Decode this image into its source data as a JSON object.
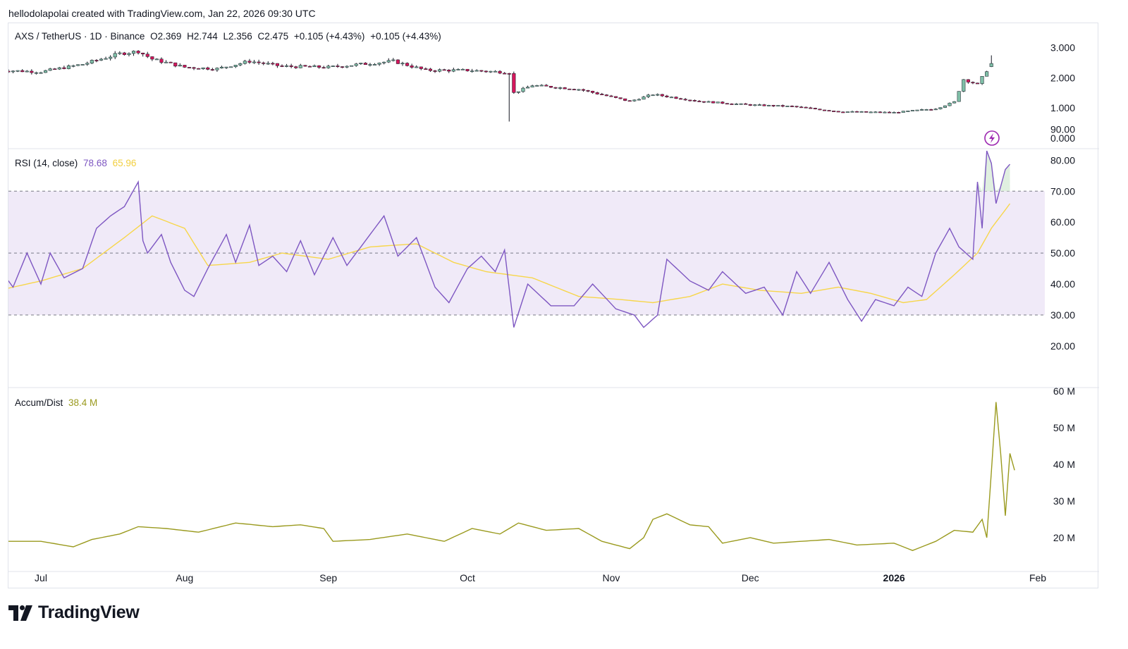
{
  "header": {
    "text": "hellodolapolai created with TradingView.com, Jan 22, 2026 09:30 UTC"
  },
  "logo": {
    "text": "TradingView",
    "icon": "tradingview-logo-icon"
  },
  "legend_price": {
    "symbol": "AXS / TetherUS · 1D · Binance",
    "open": "O2.369",
    "high": "H2.744",
    "low": "L2.356",
    "close": "C2.475",
    "change1": "+0.105 (+4.43%)",
    "change2": "+0.105 (+4.43%)"
  },
  "legend_rsi": {
    "name": "RSI (14, close)",
    "value": "78.68",
    "ma_value": "65.96"
  },
  "legend_ad": {
    "name": "Accum/Dist",
    "value": "38.4 M"
  },
  "colors": {
    "up": "#7fbfa7",
    "down": "#d6175d",
    "rsi": "#7e57c2",
    "rsi_ma": "#f7d64a",
    "band": "#f0eaf8",
    "ad": "#9a9a1e"
  },
  "chart_data": [
    {
      "type": "candlestick",
      "title": "AXS / TetherUS · 1D · Binance",
      "x_ticks": [
        "Jul",
        "Aug",
        "Sep",
        "Oct",
        "Nov",
        "Dec",
        "2026",
        "Feb"
      ],
      "y_ticks": [
        "3.000",
        "2.000",
        "1.000",
        "0.000"
      ],
      "ylim": [
        0,
        3.3
      ],
      "notable": {
        "oct_crash_low": 0.55,
        "last": {
          "open": 2.369,
          "high": 2.744,
          "low": 2.356,
          "close": 2.475
        }
      },
      "close_path": [
        [
          "2025-06-22",
          2.25
        ],
        [
          "2025-07-01",
          2.2
        ],
        [
          "2025-07-10",
          2.45
        ],
        [
          "2025-07-18",
          2.8
        ],
        [
          "2025-07-22",
          2.88
        ],
        [
          "2025-07-25",
          2.62
        ],
        [
          "2025-08-01",
          2.35
        ],
        [
          "2025-08-08",
          2.3
        ],
        [
          "2025-08-15",
          2.55
        ],
        [
          "2025-08-22",
          2.38
        ],
        [
          "2025-09-01",
          2.35
        ],
        [
          "2025-09-08",
          2.45
        ],
        [
          "2025-09-15",
          2.55
        ],
        [
          "2025-09-22",
          2.25
        ],
        [
          "2025-10-01",
          2.25
        ],
        [
          "2025-10-10",
          2.18
        ],
        [
          "2025-10-11",
          1.5
        ],
        [
          "2025-10-15",
          1.75
        ],
        [
          "2025-10-25",
          1.62
        ],
        [
          "2025-11-05",
          1.22
        ],
        [
          "2025-11-10",
          1.45
        ],
        [
          "2025-11-20",
          1.22
        ],
        [
          "2025-12-01",
          1.1
        ],
        [
          "2025-12-10",
          1.05
        ],
        [
          "2025-12-20",
          0.88
        ],
        [
          "2026-01-01",
          0.85
        ],
        [
          "2026-01-10",
          0.98
        ],
        [
          "2026-01-14",
          1.2
        ],
        [
          "2026-01-16",
          1.95
        ],
        [
          "2026-01-19",
          1.78
        ],
        [
          "2026-01-22",
          2.475
        ]
      ]
    },
    {
      "type": "line",
      "title": "RSI (14, close)",
      "y_ticks": [
        "90.00",
        "80.00",
        "70.00",
        "60.00",
        "50.00",
        "40.00",
        "30.00",
        "20.00"
      ],
      "ylim": [
        18,
        92
      ],
      "bands": {
        "upper": 70,
        "middle": 50,
        "lower": 30
      },
      "series": [
        {
          "name": "RSI",
          "points": [
            [
              "2025-06-22",
              45
            ],
            [
              "2025-06-25",
              39
            ],
            [
              "2025-06-28",
              50
            ],
            [
              "2025-07-01",
              40
            ],
            [
              "2025-07-03",
              50
            ],
            [
              "2025-07-06",
              42
            ],
            [
              "2025-07-10",
              45
            ],
            [
              "2025-07-13",
              58
            ],
            [
              "2025-07-16",
              62
            ],
            [
              "2025-07-19",
              65
            ],
            [
              "2025-07-22",
              73
            ],
            [
              "2025-07-23",
              54
            ],
            [
              "2025-07-24",
              50
            ],
            [
              "2025-07-27",
              56
            ],
            [
              "2025-07-29",
              47
            ],
            [
              "2025-08-01",
              38
            ],
            [
              "2025-08-03",
              36
            ],
            [
              "2025-08-06",
              45
            ],
            [
              "2025-08-10",
              56
            ],
            [
              "2025-08-12",
              47
            ],
            [
              "2025-08-15",
              59
            ],
            [
              "2025-08-17",
              46
            ],
            [
              "2025-08-20",
              49
            ],
            [
              "2025-08-23",
              44
            ],
            [
              "2025-08-26",
              54
            ],
            [
              "2025-08-29",
              43
            ],
            [
              "2025-09-02",
              55
            ],
            [
              "2025-09-05",
              46
            ],
            [
              "2025-09-09",
              54
            ],
            [
              "2025-09-13",
              62
            ],
            [
              "2025-09-16",
              49
            ],
            [
              "2025-09-20",
              55
            ],
            [
              "2025-09-24",
              39
            ],
            [
              "2025-09-27",
              34
            ],
            [
              "2025-10-01",
              45
            ],
            [
              "2025-10-04",
              49
            ],
            [
              "2025-10-07",
              44
            ],
            [
              "2025-10-09",
              51
            ],
            [
              "2025-10-11",
              26
            ],
            [
              "2025-10-14",
              40
            ],
            [
              "2025-10-19",
              33
            ],
            [
              "2025-10-24",
              33
            ],
            [
              "2025-10-28",
              40
            ],
            [
              "2025-11-02",
              32
            ],
            [
              "2025-11-06",
              30
            ],
            [
              "2025-11-08",
              26
            ],
            [
              "2025-11-11",
              30
            ],
            [
              "2025-11-13",
              48
            ],
            [
              "2025-11-18",
              41
            ],
            [
              "2025-11-22",
              38
            ],
            [
              "2025-11-25",
              44
            ],
            [
              "2025-11-30",
              37
            ],
            [
              "2025-12-04",
              39
            ],
            [
              "2025-12-08",
              30
            ],
            [
              "2025-12-11",
              44
            ],
            [
              "2025-12-14",
              37
            ],
            [
              "2025-12-18",
              47
            ],
            [
              "2025-12-22",
              35
            ],
            [
              "2025-12-25",
              28
            ],
            [
              "2025-12-28",
              35
            ],
            [
              "2026-01-01",
              33
            ],
            [
              "2026-01-04",
              39
            ],
            [
              "2026-01-07",
              36
            ],
            [
              "2026-01-10",
              50
            ],
            [
              "2026-01-13",
              58
            ],
            [
              "2026-01-15",
              52
            ],
            [
              "2026-01-18",
              48
            ],
            [
              "2026-01-19",
              73
            ],
            [
              "2026-01-20",
              58
            ],
            [
              "2026-01-21",
              83
            ],
            [
              "2026-01-22",
              79
            ],
            [
              "2026-01-23",
              66
            ],
            [
              "2026-01-25",
              77
            ],
            [
              "2026-01-26",
              78.68
            ]
          ]
        },
        {
          "name": "RSI-based MA",
          "points": [
            [
              "2025-06-22",
              38
            ],
            [
              "2025-07-01",
              41
            ],
            [
              "2025-07-10",
              45
            ],
            [
              "2025-07-19",
              55
            ],
            [
              "2025-07-25",
              62
            ],
            [
              "2025-08-01",
              58
            ],
            [
              "2025-08-06",
              46
            ],
            [
              "2025-08-15",
              47
            ],
            [
              "2025-08-22",
              50
            ],
            [
              "2025-09-01",
              48
            ],
            [
              "2025-09-10",
              52
            ],
            [
              "2025-09-20",
              53
            ],
            [
              "2025-09-28",
              47
            ],
            [
              "2025-10-05",
              44
            ],
            [
              "2025-10-15",
              42
            ],
            [
              "2025-10-25",
              36
            ],
            [
              "2025-11-03",
              35
            ],
            [
              "2025-11-10",
              34
            ],
            [
              "2025-11-18",
              36
            ],
            [
              "2025-11-25",
              40
            ],
            [
              "2025-12-03",
              38
            ],
            [
              "2025-12-12",
              37
            ],
            [
              "2025-12-20",
              39
            ],
            [
              "2025-12-27",
              37
            ],
            [
              "2026-01-03",
              34
            ],
            [
              "2026-01-08",
              35
            ],
            [
              "2026-01-14",
              43
            ],
            [
              "2026-01-19",
              50
            ],
            [
              "2026-01-22",
              58
            ],
            [
              "2026-01-26",
              65.96
            ]
          ]
        }
      ]
    },
    {
      "type": "line",
      "title": "Accum/Dist",
      "y_ticks": [
        "60 M",
        "50 M",
        "40 M",
        "30 M",
        "20 M"
      ],
      "ylim": [
        13,
        60
      ],
      "series": [
        {
          "name": "Accum/Dist",
          "points": [
            [
              "2025-06-22",
              19
            ],
            [
              "2025-07-01",
              19
            ],
            [
              "2025-07-08",
              17.5
            ],
            [
              "2025-07-12",
              19.5
            ],
            [
              "2025-07-18",
              21
            ],
            [
              "2025-07-22",
              23
            ],
            [
              "2025-07-28",
              22.5
            ],
            [
              "2025-08-04",
              21.5
            ],
            [
              "2025-08-12",
              24
            ],
            [
              "2025-08-20",
              23
            ],
            [
              "2025-08-26",
              23.5
            ],
            [
              "2025-08-31",
              22.5
            ],
            [
              "2025-09-02",
              19
            ],
            [
              "2025-09-10",
              19.5
            ],
            [
              "2025-09-18",
              21
            ],
            [
              "2025-09-26",
              19
            ],
            [
              "2025-10-02",
              22.5
            ],
            [
              "2025-10-08",
              21
            ],
            [
              "2025-10-12",
              24
            ],
            [
              "2025-10-18",
              22
            ],
            [
              "2025-10-25",
              22.5
            ],
            [
              "2025-10-30",
              19
            ],
            [
              "2025-11-05",
              17
            ],
            [
              "2025-11-08",
              20
            ],
            [
              "2025-11-10",
              25
            ],
            [
              "2025-11-13",
              26.5
            ],
            [
              "2025-11-18",
              23.5
            ],
            [
              "2025-11-22",
              23
            ],
            [
              "2025-11-25",
              18.5
            ],
            [
              "2025-12-01",
              20
            ],
            [
              "2025-12-06",
              18.5
            ],
            [
              "2025-12-12",
              19
            ],
            [
              "2025-12-18",
              19.5
            ],
            [
              "2025-12-24",
              18
            ],
            [
              "2026-01-01",
              18.5
            ],
            [
              "2026-01-05",
              16.5
            ],
            [
              "2026-01-10",
              19
            ],
            [
              "2026-01-14",
              22
            ],
            [
              "2026-01-18",
              21.5
            ],
            [
              "2026-01-20",
              25
            ],
            [
              "2026-01-21",
              20
            ],
            [
              "2026-01-22",
              38
            ],
            [
              "2026-01-23",
              57
            ],
            [
              "2026-01-24",
              43
            ],
            [
              "2026-01-25",
              26
            ],
            [
              "2026-01-26",
              43
            ],
            [
              "2026-01-27",
              38.4
            ]
          ]
        }
      ]
    }
  ]
}
